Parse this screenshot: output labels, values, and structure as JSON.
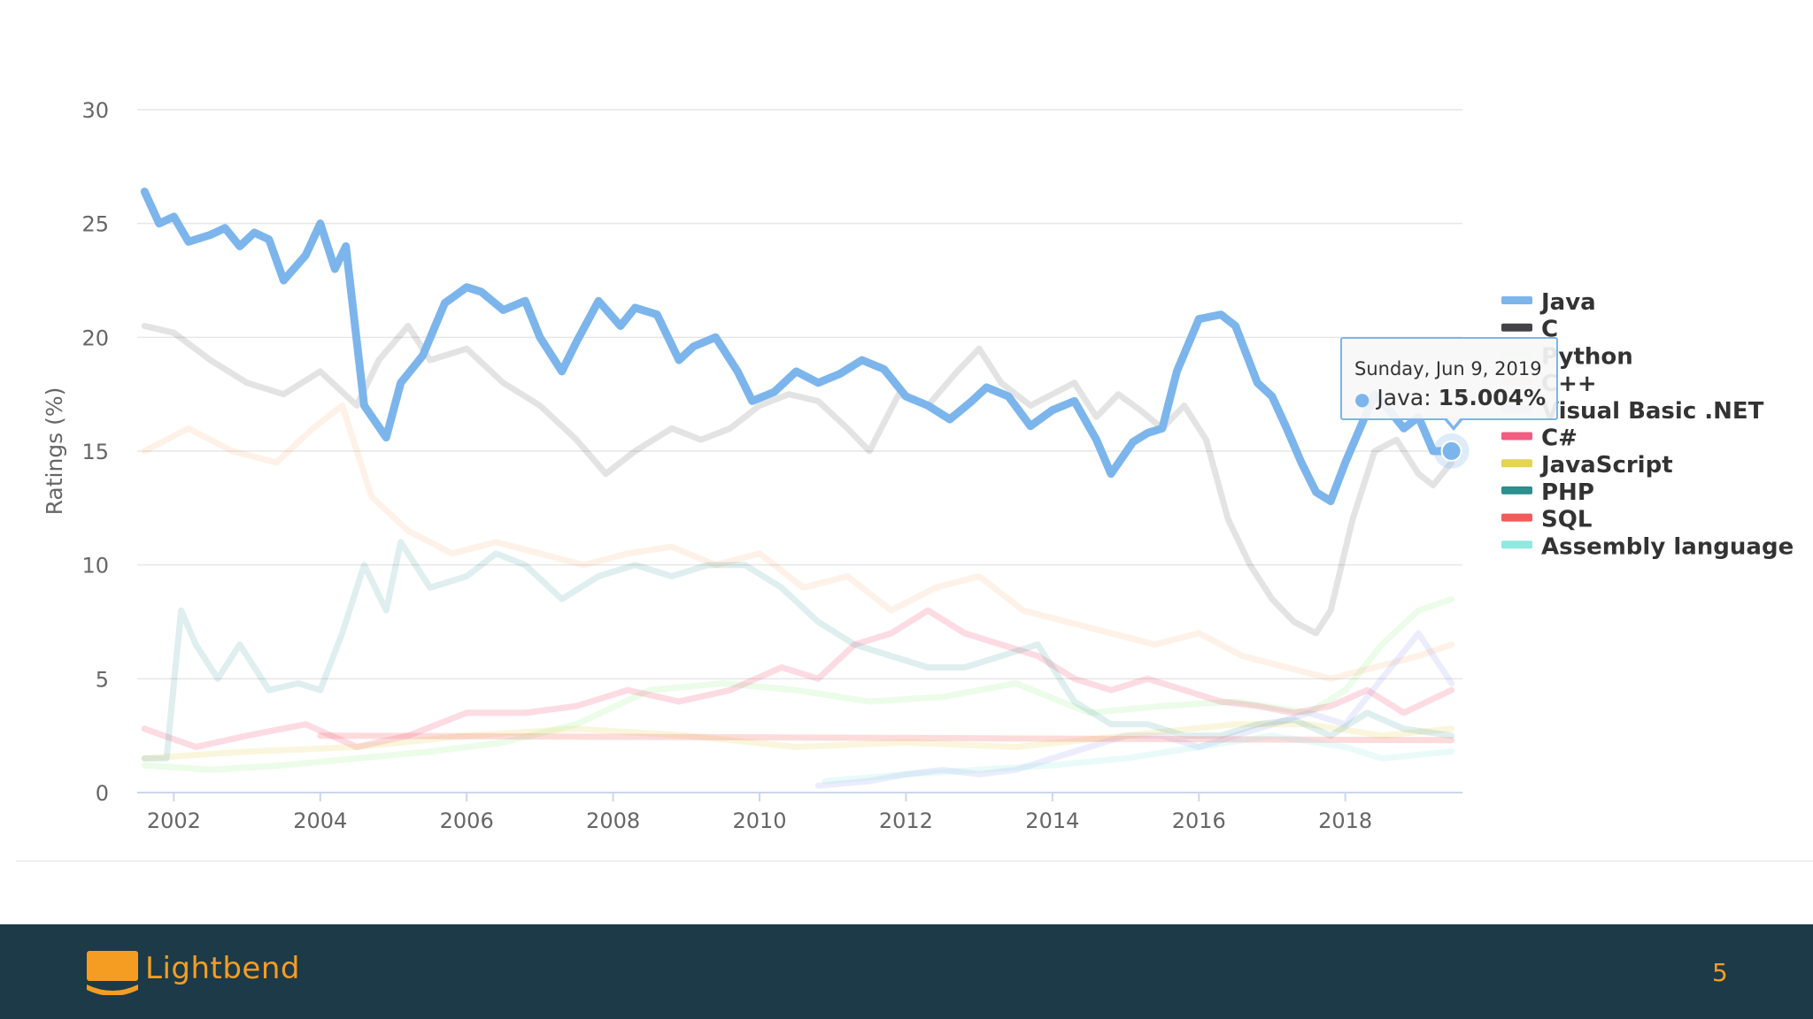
{
  "chart_data": {
    "type": "line",
    "title": "",
    "xlabel": "",
    "ylabel": "Ratings (%)",
    "xlim": [
      2001.5,
      2019.6
    ],
    "ylim": [
      0,
      30
    ],
    "y_ticks": [
      0,
      5,
      10,
      15,
      20,
      25,
      30
    ],
    "x_ticks": [
      2002,
      2004,
      2006,
      2008,
      2010,
      2012,
      2014,
      2016,
      2018
    ],
    "grid": true,
    "legend_position": "right",
    "highlighted_series": "Java",
    "series": [
      {
        "name": "Java",
        "color": "#7cb5ec",
        "opacity": 1,
        "x": [
          2001.6,
          2001.8,
          2002.0,
          2002.2,
          2002.5,
          2002.7,
          2002.9,
          2003.1,
          2003.3,
          2003.5,
          2003.8,
          2004.0,
          2004.2,
          2004.35,
          2004.6,
          2004.9,
          2005.1,
          2005.4,
          2005.7,
          2006.0,
          2006.2,
          2006.5,
          2006.8,
          2007.0,
          2007.3,
          2007.5,
          2007.8,
          2008.1,
          2008.3,
          2008.6,
          2008.9,
          2009.1,
          2009.4,
          2009.7,
          2009.9,
          2010.2,
          2010.5,
          2010.8,
          2011.1,
          2011.4,
          2011.7,
          2012.0,
          2012.3,
          2012.6,
          2012.9,
          2013.1,
          2013.4,
          2013.7,
          2014.0,
          2014.3,
          2014.6,
          2014.8,
          2015.1,
          2015.3,
          2015.5,
          2015.7,
          2016.0,
          2016.3,
          2016.5,
          2016.8,
          2017.0,
          2017.2,
          2017.4,
          2017.6,
          2017.8,
          2018.0,
          2018.2,
          2018.4,
          2018.6,
          2018.8,
          2019.0,
          2019.2,
          2019.45
        ],
        "values": [
          26.4,
          25.0,
          25.3,
          24.2,
          24.5,
          24.8,
          24.0,
          24.6,
          24.3,
          22.5,
          23.6,
          25.0,
          23.0,
          24.0,
          17.0,
          15.6,
          18.0,
          19.2,
          21.5,
          22.2,
          22.0,
          21.2,
          21.6,
          20.0,
          18.5,
          19.8,
          21.6,
          20.5,
          21.3,
          21.0,
          19.0,
          19.6,
          20.0,
          18.5,
          17.2,
          17.6,
          18.5,
          18.0,
          18.4,
          19.0,
          18.6,
          17.4,
          17.0,
          16.4,
          17.2,
          17.8,
          17.4,
          16.1,
          16.8,
          17.2,
          15.5,
          14.0,
          15.4,
          15.8,
          16.0,
          18.5,
          20.8,
          21.0,
          20.5,
          18.0,
          17.4,
          16.0,
          14.5,
          13.2,
          12.8,
          14.5,
          16.0,
          17.5,
          16.8,
          16.0,
          16.5,
          15.0,
          15.004
        ]
      },
      {
        "name": "C",
        "color": "#434348",
        "opacity": 0.15,
        "x": [
          2001.6,
          2002.0,
          2002.5,
          2003.0,
          2003.5,
          2004.0,
          2004.5,
          2004.8,
          2005.2,
          2005.5,
          2006.0,
          2006.5,
          2007.0,
          2007.5,
          2007.9,
          2008.3,
          2008.8,
          2009.2,
          2009.6,
          2010.0,
          2010.4,
          2010.8,
          2011.2,
          2011.5,
          2011.9,
          2012.3,
          2012.7,
          2013.0,
          2013.3,
          2013.7,
          2014.0,
          2014.3,
          2014.6,
          2014.9,
          2015.2,
          2015.5,
          2015.8,
          2016.1,
          2016.4,
          2016.7,
          2017.0,
          2017.3,
          2017.6,
          2017.8,
          2018.1,
          2018.4,
          2018.7,
          2019.0,
          2019.2,
          2019.45
        ],
        "values": [
          20.5,
          20.2,
          19.0,
          18.0,
          17.5,
          18.5,
          17.0,
          19.0,
          20.5,
          19.0,
          19.5,
          18.0,
          17.0,
          15.5,
          14.0,
          15.0,
          16.0,
          15.5,
          16.0,
          17.0,
          17.5,
          17.2,
          16.0,
          15.0,
          17.5,
          17.0,
          18.5,
          19.5,
          18.0,
          17.0,
          17.5,
          18.0,
          16.5,
          17.5,
          16.8,
          16.0,
          17.0,
          15.5,
          12.0,
          10.0,
          8.5,
          7.5,
          7.0,
          8.0,
          12.0,
          15.0,
          15.5,
          14.0,
          13.5,
          14.5
        ]
      },
      {
        "name": "Python",
        "color": "#90ed7d",
        "opacity": 0.18,
        "x": [
          2001.6,
          2002.5,
          2003.5,
          2004.5,
          2005.5,
          2006.5,
          2007.5,
          2008.5,
          2009.5,
          2010.5,
          2011.5,
          2012.5,
          2013.5,
          2014.5,
          2015.5,
          2016.5,
          2017.5,
          2018.0,
          2018.5,
          2019.0,
          2019.45
        ],
        "values": [
          1.2,
          1.0,
          1.2,
          1.5,
          1.8,
          2.2,
          3.0,
          4.5,
          4.8,
          4.5,
          4.0,
          4.2,
          4.8,
          3.5,
          3.8,
          4.0,
          3.5,
          4.5,
          6.5,
          8.0,
          8.5
        ]
      },
      {
        "name": "C++",
        "color": "#f7a35c",
        "opacity": 0.15,
        "x": [
          2001.6,
          2002.2,
          2002.8,
          2003.4,
          2003.9,
          2004.3,
          2004.7,
          2005.2,
          2005.8,
          2006.4,
          2007.0,
          2007.6,
          2008.2,
          2008.8,
          2009.4,
          2010.0,
          2010.6,
          2011.2,
          2011.8,
          2012.4,
          2013.0,
          2013.6,
          2014.2,
          2014.8,
          2015.4,
          2016.0,
          2016.6,
          2017.2,
          2017.8,
          2018.4,
          2019.0,
          2019.45
        ],
        "values": [
          15.0,
          16.0,
          15.0,
          14.5,
          16.0,
          17.0,
          13.0,
          11.5,
          10.5,
          11.0,
          10.5,
          10.0,
          10.5,
          10.8,
          10.0,
          10.5,
          9.0,
          9.5,
          8.0,
          9.0,
          9.5,
          8.0,
          7.5,
          7.0,
          6.5,
          7.0,
          6.0,
          5.5,
          5.0,
          5.5,
          6.0,
          6.5
        ]
      },
      {
        "name": "Visual Basic .NET",
        "color": "#8085e9",
        "opacity": 0.15,
        "x": [
          2010.8,
          2011.5,
          2012.0,
          2012.5,
          2013.0,
          2013.5,
          2014.0,
          2014.5,
          2015.0,
          2015.5,
          2016.0,
          2016.5,
          2017.0,
          2017.5,
          2018.0,
          2018.5,
          2019.0,
          2019.45
        ],
        "values": [
          0.3,
          0.5,
          0.8,
          1.0,
          0.8,
          1.0,
          1.5,
          2.0,
          2.5,
          2.5,
          2.0,
          2.5,
          3.0,
          3.5,
          3.0,
          5.0,
          7.0,
          4.8
        ]
      },
      {
        "name": "C#",
        "color": "#f15c80",
        "opacity": 0.22,
        "x": [
          2001.6,
          2002.3,
          2003.0,
          2003.8,
          2004.5,
          2005.2,
          2006.0,
          2006.8,
          2007.5,
          2008.2,
          2008.9,
          2009.6,
          2010.3,
          2010.8,
          2011.3,
          2011.8,
          2012.3,
          2012.8,
          2013.3,
          2013.8,
          2014.3,
          2014.8,
          2015.3,
          2015.8,
          2016.3,
          2016.8,
          2017.3,
          2017.8,
          2018.3,
          2018.8,
          2019.45
        ],
        "values": [
          2.8,
          2.0,
          2.5,
          3.0,
          2.0,
          2.5,
          3.5,
          3.5,
          3.8,
          4.5,
          4.0,
          4.5,
          5.5,
          5.0,
          6.5,
          7.0,
          8.0,
          7.0,
          6.5,
          6.0,
          5.0,
          4.5,
          5.0,
          4.5,
          4.0,
          3.8,
          3.5,
          3.8,
          4.5,
          3.5,
          4.5
        ]
      },
      {
        "name": "JavaScript",
        "color": "#e4d354",
        "opacity": 0.2,
        "x": [
          2001.6,
          2003.0,
          2004.5,
          2006.0,
          2007.5,
          2009.0,
          2010.5,
          2012.0,
          2013.5,
          2015.0,
          2016.5,
          2017.5,
          2018.5,
          2019.45
        ],
        "values": [
          1.5,
          1.8,
          2.0,
          2.5,
          2.8,
          2.5,
          2.0,
          2.2,
          2.0,
          2.5,
          3.0,
          3.0,
          2.5,
          2.8
        ]
      },
      {
        "name": "PHP",
        "color": "#2b908f",
        "opacity": 0.15,
        "x": [
          2001.6,
          2001.9,
          2002.1,
          2002.3,
          2002.6,
          2002.9,
          2003.3,
          2003.7,
          2004.0,
          2004.3,
          2004.6,
          2004.9,
          2005.1,
          2005.5,
          2006.0,
          2006.4,
          2006.8,
          2007.3,
          2007.8,
          2008.3,
          2008.8,
          2009.3,
          2009.8,
          2010.3,
          2010.8,
          2011.3,
          2011.8,
          2012.3,
          2012.8,
          2013.3,
          2013.8,
          2014.3,
          2014.8,
          2015.3,
          2015.8,
          2016.3,
          2016.8,
          2017.3,
          2017.8,
          2018.3,
          2018.8,
          2019.45
        ],
        "values": [
          1.5,
          1.5,
          8.0,
          6.5,
          5.0,
          6.5,
          4.5,
          4.8,
          4.5,
          7.0,
          10.0,
          8.0,
          11.0,
          9.0,
          9.5,
          10.5,
          10.0,
          8.5,
          9.5,
          10.0,
          9.5,
          10.0,
          10.0,
          9.0,
          7.5,
          6.5,
          6.0,
          5.5,
          5.5,
          6.0,
          6.5,
          4.0,
          3.0,
          3.0,
          2.5,
          2.5,
          3.0,
          3.2,
          2.5,
          3.5,
          2.8,
          2.5
        ]
      },
      {
        "name": "SQL",
        "color": "#f45b5b",
        "opacity": 0.22,
        "x": [
          2004.0,
          2019.45
        ],
        "values": [
          2.5,
          2.3
        ]
      },
      {
        "name": "Assembly language",
        "color": "#91e8e1",
        "opacity": 0.2,
        "x": [
          2010.9,
          2012.0,
          2013.0,
          2014.0,
          2015.0,
          2016.0,
          2017.0,
          2018.0,
          2018.5,
          2019.45
        ],
        "values": [
          0.5,
          0.8,
          1.0,
          1.2,
          1.5,
          2.0,
          2.5,
          2.0,
          1.5,
          1.8
        ]
      }
    ]
  },
  "tooltip": {
    "date": "Sunday, Jun 9, 2019",
    "series": "Java",
    "value": "15.004%"
  },
  "footer": {
    "brand": "Lightbend",
    "page_number": "5",
    "brand_color": "#f59d22",
    "bg_color": "#1c3a47"
  }
}
